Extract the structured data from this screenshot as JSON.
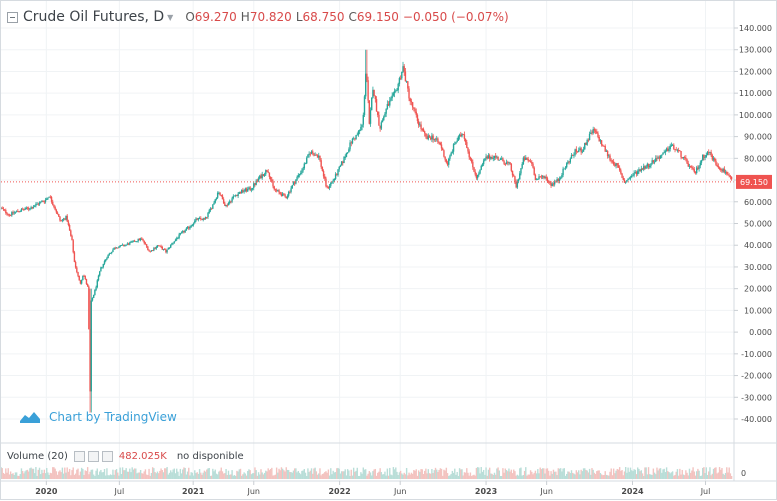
{
  "legend": {
    "symbol": "Crude Oil Futures, D",
    "open_label": "O",
    "open": "69.270",
    "high_label": "H",
    "high": "70.820",
    "low_label": "L",
    "low": "68.750",
    "close_label": "C",
    "close": "69.150",
    "change": "−0.050 (−0.07%)"
  },
  "watermark": {
    "text": "Chart by TradingView"
  },
  "volume_legend": {
    "label": "Volume (20)",
    "value": "482.025K",
    "note": "no disponible"
  },
  "colors": {
    "up": "#26a69a",
    "down": "#ef5350",
    "price_line": "#ef5350",
    "axis_text": "#4a4a4a",
    "grid": "#f0f3f5",
    "volume_up": "#b9ded8",
    "volume_down": "#f3c3c0"
  },
  "chart_data": {
    "type": "line",
    "subtype": "candlestick",
    "title": "Crude Oil Futures, D",
    "ylim": [
      -48,
      140
    ],
    "yticks": [
      "140.000",
      "130.000",
      "120.000",
      "110.000",
      "100.000",
      "90.000",
      "80.000",
      "70.000",
      "60.000",
      "50.000",
      "40.000",
      "30.000",
      "20.000",
      "10.000",
      "0.000",
      "-10.000",
      "-20.000",
      "-30.000",
      "-40.000"
    ],
    "xticks": [
      "2020",
      "Jul",
      "2021",
      "Jun",
      "2022",
      "Jun",
      "2023",
      "Jun",
      "2024",
      "Jul"
    ],
    "xtick_dates": [
      "2020-01-01",
      "2020-07-01",
      "2021-01-01",
      "2021-06-01",
      "2022-01-01",
      "2022-06-01",
      "2023-01-01",
      "2023-06-01",
      "2024-01-01",
      "2024-07-01"
    ],
    "xlim": [
      "2019-09-10",
      "2024-09-05"
    ],
    "last_price_label": "69.150",
    "last_price": 69.15,
    "grid": true,
    "series": [
      {
        "points": [
          [
            "2019-09-10",
            57
          ],
          [
            "2019-10-01",
            54
          ],
          [
            "2019-10-25",
            56
          ],
          [
            "2019-11-20",
            57
          ],
          [
            "2019-12-10",
            59
          ],
          [
            "2019-12-31",
            61
          ],
          [
            "2020-01-08",
            63
          ],
          [
            "2020-01-20",
            58
          ],
          [
            "2020-02-05",
            51
          ],
          [
            "2020-02-20",
            53
          ],
          [
            "2020-03-06",
            41
          ],
          [
            "2020-03-10",
            33
          ],
          [
            "2020-03-25",
            22
          ],
          [
            "2020-04-02",
            27
          ],
          [
            "2020-04-14",
            20
          ],
          [
            "2020-04-20",
            -37
          ],
          [
            "2020-04-22",
            14
          ],
          [
            "2020-05-01",
            19
          ],
          [
            "2020-05-15",
            29
          ],
          [
            "2020-06-01",
            35
          ],
          [
            "2020-06-20",
            39
          ],
          [
            "2020-07-15",
            40
          ],
          [
            "2020-08-10",
            42
          ],
          [
            "2020-08-25",
            43
          ],
          [
            "2020-09-15",
            37
          ],
          [
            "2020-10-05",
            40
          ],
          [
            "2020-10-25",
            37
          ],
          [
            "2020-11-10",
            41
          ],
          [
            "2020-11-30",
            45
          ],
          [
            "2020-12-20",
            48
          ],
          [
            "2021-01-10",
            52
          ],
          [
            "2021-01-31",
            52
          ],
          [
            "2021-02-20",
            59
          ],
          [
            "2021-03-05",
            65
          ],
          [
            "2021-03-23",
            58
          ],
          [
            "2021-04-15",
            63
          ],
          [
            "2021-05-05",
            65
          ],
          [
            "2021-05-25",
            66
          ],
          [
            "2021-06-15",
            71
          ],
          [
            "2021-07-06",
            75
          ],
          [
            "2021-07-20",
            66
          ],
          [
            "2021-08-20",
            62
          ],
          [
            "2021-09-10",
            69
          ],
          [
            "2021-09-30",
            75
          ],
          [
            "2021-10-20",
            83
          ],
          [
            "2021-11-10",
            81
          ],
          [
            "2021-11-30",
            66
          ],
          [
            "2021-12-20",
            71
          ],
          [
            "2022-01-10",
            79
          ],
          [
            "2022-01-31",
            88
          ],
          [
            "2022-02-15",
            91
          ],
          [
            "2022-02-28",
            96
          ],
          [
            "2022-03-08",
            123
          ],
          [
            "2022-03-16",
            95
          ],
          [
            "2022-03-25",
            113
          ],
          [
            "2022-04-11",
            94
          ],
          [
            "2022-04-30",
            104
          ],
          [
            "2022-05-20",
            110
          ],
          [
            "2022-06-08",
            122
          ],
          [
            "2022-06-25",
            107
          ],
          [
            "2022-07-15",
            97
          ],
          [
            "2022-08-05",
            89
          ],
          [
            "2022-08-20",
            90
          ],
          [
            "2022-09-10",
            86
          ],
          [
            "2022-09-26",
            77
          ],
          [
            "2022-10-15",
            87
          ],
          [
            "2022-11-05",
            92
          ],
          [
            "2022-11-25",
            78
          ],
          [
            "2022-12-09",
            71
          ],
          [
            "2022-12-30",
            80
          ],
          [
            "2023-01-20",
            81
          ],
          [
            "2023-02-10",
            79
          ],
          [
            "2023-03-01",
            77
          ],
          [
            "2023-03-17",
            67
          ],
          [
            "2023-04-05",
            80
          ],
          [
            "2023-04-25",
            78
          ],
          [
            "2023-05-05",
            70
          ],
          [
            "2023-05-25",
            72
          ],
          [
            "2023-06-12",
            68
          ],
          [
            "2023-06-30",
            70
          ],
          [
            "2023-07-20",
            77
          ],
          [
            "2023-08-10",
            83
          ],
          [
            "2023-08-30",
            84
          ],
          [
            "2023-09-15",
            90
          ],
          [
            "2023-09-27",
            93
          ],
          [
            "2023-10-15",
            87
          ],
          [
            "2023-11-05",
            80
          ],
          [
            "2023-11-25",
            76
          ],
          [
            "2023-12-12",
            69
          ],
          [
            "2023-12-31",
            72
          ],
          [
            "2024-01-20",
            75
          ],
          [
            "2024-02-10",
            77
          ],
          [
            "2024-03-01",
            80
          ],
          [
            "2024-03-20",
            82
          ],
          [
            "2024-04-05",
            86
          ],
          [
            "2024-04-25",
            83
          ],
          [
            "2024-05-15",
            78
          ],
          [
            "2024-06-04",
            73
          ],
          [
            "2024-06-25",
            81
          ],
          [
            "2024-07-10",
            83
          ],
          [
            "2024-07-25",
            78
          ],
          [
            "2024-08-10",
            75
          ],
          [
            "2024-08-25",
            73
          ],
          [
            "2024-09-05",
            69.15
          ]
        ]
      }
    ],
    "volume": {
      "label": "Volume (20)",
      "value": "482.025K",
      "note": "no disponible",
      "ylim": [
        0,
        1
      ],
      "yticks": [
        "0"
      ]
    }
  }
}
